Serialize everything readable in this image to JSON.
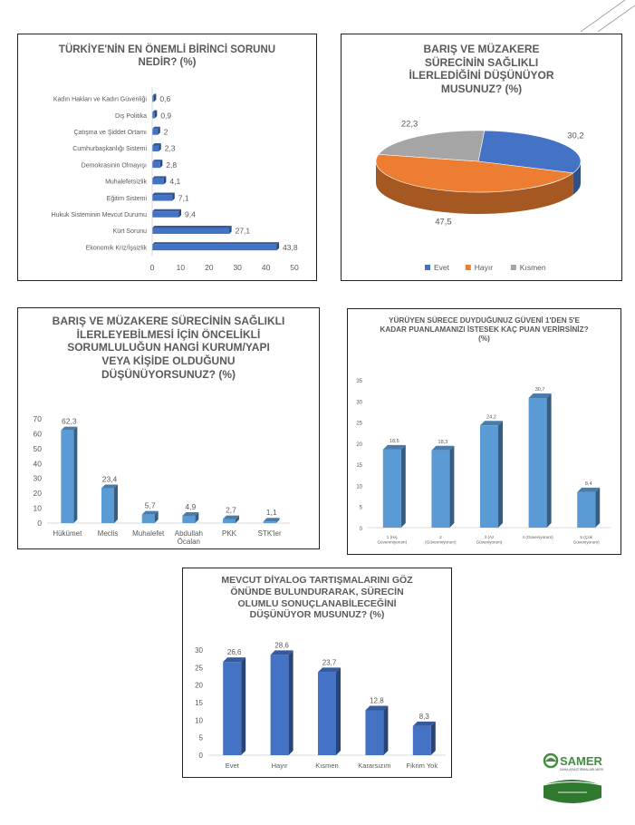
{
  "colors": {
    "blue": "#4472c4",
    "orange": "#ed7d31",
    "gray": "#a5a5a5",
    "lightblue": "#5b9bd5",
    "title": "#595959",
    "axis": "#595959"
  },
  "logo": {
    "name": "SAMER",
    "subtitle": "SAHA ARAŞTIRMALARI MERKEZİ"
  },
  "chart_data": [
    {
      "type": "bar",
      "orientation": "horizontal",
      "title": "TÜRKİYE'NİN EN ÖNEMLİ BİRİNCİ SORUNU\nNEDİR? (%)",
      "categories": [
        "Kadın Hakları ve Kadın Güvenliği",
        "Dış Politika",
        "Çatışma ve Şiddet Ortamı",
        "Cumhurbaşkanlığı Sistemi",
        "Demokrasinin Olmayışı",
        "Muhalefetsizlik",
        "Eğitim Sistemi",
        "Hukuk Sisteminin Mevcut Durumu",
        "Kürt Sorunu",
        "Ekonomik Kriz/İşsizlik"
      ],
      "values": [
        0.6,
        0.9,
        2,
        2.3,
        2.8,
        4.1,
        7.1,
        9.4,
        27.1,
        43.8
      ],
      "value_labels": [
        "0,6",
        "0,9",
        "2",
        "2,3",
        "2,8",
        "4,1",
        "7,1",
        "9,4",
        "27,1",
        "43,8"
      ],
      "xticks": [
        "0",
        "10",
        "20",
        "30",
        "40",
        "50"
      ],
      "xlim": [
        0,
        50
      ],
      "color": "#4472c4",
      "grid": false
    },
    {
      "type": "pie",
      "title": "BARIŞ VE MÜZAKERE\nSÜRECİNİN SAĞLIKLI\nİLERLEDİĞİNİ DÜŞÜNÜYOR\nMUSUNUZ? (%)",
      "categories": [
        "Evet",
        "Hayır",
        "Kısmen"
      ],
      "values": [
        30.2,
        47.5,
        22.3
      ],
      "value_labels": [
        "30,2",
        "47,5",
        "22,3"
      ],
      "colors": [
        "#4472c4",
        "#ed7d31",
        "#a5a5a5"
      ],
      "legend": "bottom",
      "style": "3d"
    },
    {
      "type": "bar",
      "title": "BARIŞ VE MÜZAKERE SÜRECİNİN SAĞLIKLI\nİLERLEYEBİLMESİ İÇİN ÖNCELİKLİ\nSORUMLULUĞUN HANGİ KURUM/YAPI\nVEYA KİŞİDE OLDUĞUNU\nDÜŞÜNÜYORSUNUZ? (%)",
      "categories": [
        "Hükümet",
        "Meclis",
        "Muhalefet",
        "Abdullah\nÖcalan",
        "PKK",
        "STK'ler"
      ],
      "values": [
        62.3,
        23.4,
        5.7,
        4.9,
        2.7,
        1.1
      ],
      "value_labels": [
        "62,3",
        "23,4",
        "5,7",
        "4,9",
        "2,7",
        "1,1"
      ],
      "yticks": [
        "0",
        "10",
        "20",
        "30",
        "40",
        "50",
        "60",
        "70"
      ],
      "ylim": [
        0,
        70
      ],
      "color": "#5b9bd5",
      "grid": false
    },
    {
      "type": "bar",
      "title": "YÜRÜYEN SÜRECE DUYDUĞUNUZ GÜVENİ 1'DEN 5'E\nKADAR PUANLAMANIZI İSTESEK KAÇ PUAN VERİRSİNİZ?\n(%)",
      "categories": [
        "1 (Hiç\nGüvenmiyorum)",
        "2\n(Güvenmiyorum)",
        "3 (Az\nGüveniyorum)",
        "4 (Güveniyorum)",
        "5 (Çok\nGüveniyorum)"
      ],
      "values": [
        18.5,
        18.3,
        24.2,
        30.7,
        8.4
      ],
      "value_labels": [
        "18,5",
        "18,3",
        "24,2",
        "30,7",
        "8,4"
      ],
      "yticks": [
        "0",
        "5",
        "10",
        "15",
        "20",
        "25",
        "30",
        "35"
      ],
      "ylim": [
        0,
        35
      ],
      "color": "#5b9bd5",
      "grid": false
    },
    {
      "type": "bar",
      "title": "MEVCUT DİYALOG TARTIŞMALARINI GÖZ\nÖNÜNDE BULUNDURARAK, SÜRECİN\nOLUMLU SONUÇLANABİLECEĞİNİ\nDÜŞÜNÜYOR MUSUNUZ? (%)",
      "categories": [
        "Evet",
        "Hayır",
        "Kısmen",
        "Kararsızım",
        "Fikrim Yok"
      ],
      "values": [
        26.6,
        28.6,
        23.7,
        12.8,
        8.3
      ],
      "value_labels": [
        "26,6",
        "28,6",
        "23,7",
        "12,8",
        "8,3"
      ],
      "yticks": [
        "0",
        "5",
        "10",
        "15",
        "20",
        "25",
        "30"
      ],
      "ylim": [
        0,
        30
      ],
      "color": "#4472c4",
      "grid": false
    }
  ]
}
